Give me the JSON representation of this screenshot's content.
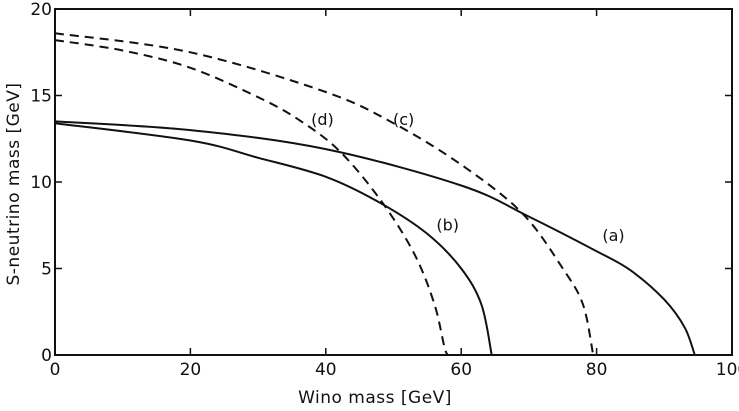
{
  "chart_data": {
    "type": "line",
    "xlabel": "Wino mass [GeV]",
    "ylabel": "S-neutrino mass [GeV]",
    "xlim": [
      0,
      100
    ],
    "ylim": [
      0,
      20
    ],
    "xticks": [
      0,
      20,
      40,
      60,
      80,
      100
    ],
    "yticks": [
      0,
      5,
      10,
      15,
      20
    ],
    "grid": false,
    "series": [
      {
        "name": "(a)",
        "style": "solid",
        "points": [
          [
            0,
            13.5
          ],
          [
            20,
            13.0
          ],
          [
            40,
            11.9
          ],
          [
            60,
            9.8
          ],
          [
            70,
            8.0
          ],
          [
            80,
            6.0
          ],
          [
            85,
            4.9
          ],
          [
            90,
            3.2
          ],
          [
            93,
            1.6
          ],
          [
            94.5,
            0
          ]
        ]
      },
      {
        "name": "(b)",
        "style": "solid",
        "points": [
          [
            0,
            13.4
          ],
          [
            20,
            12.4
          ],
          [
            30,
            11.4
          ],
          [
            40,
            10.3
          ],
          [
            48,
            8.8
          ],
          [
            55,
            7.0
          ],
          [
            60,
            5.0
          ],
          [
            63,
            2.9
          ],
          [
            64.5,
            0
          ]
        ]
      },
      {
        "name": "(c)",
        "style": "dashed",
        "points": [
          [
            0,
            18.6
          ],
          [
            20,
            17.5
          ],
          [
            40,
            15.2
          ],
          [
            50,
            13.4
          ],
          [
            60,
            11.0
          ],
          [
            69,
            8.2
          ],
          [
            75,
            5.0
          ],
          [
            78,
            2.9
          ],
          [
            79.5,
            0
          ]
        ]
      },
      {
        "name": "(d)",
        "style": "dashed",
        "points": [
          [
            0,
            18.2
          ],
          [
            10,
            17.6
          ],
          [
            20,
            16.6
          ],
          [
            30,
            14.9
          ],
          [
            36,
            13.6
          ],
          [
            42,
            11.8
          ],
          [
            48,
            9.0
          ],
          [
            53,
            5.9
          ],
          [
            56,
            3.0
          ],
          [
            57.5,
            0.5
          ],
          [
            58,
            0
          ]
        ]
      }
    ]
  },
  "colors": {
    "ink": "#111111",
    "background": "#ffffff"
  }
}
